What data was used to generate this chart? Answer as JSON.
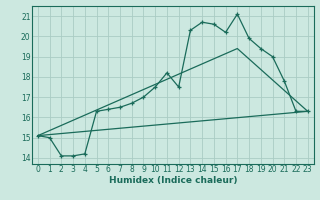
{
  "title": "",
  "xlabel": "Humidex (Indice chaleur)",
  "background_color": "#cce8e0",
  "grid_color": "#aaccc4",
  "line_color": "#1a6b5a",
  "xlim": [
    -0.5,
    23.5
  ],
  "ylim": [
    13.7,
    21.5
  ],
  "xticks": [
    0,
    1,
    2,
    3,
    4,
    5,
    6,
    7,
    8,
    9,
    10,
    11,
    12,
    13,
    14,
    15,
    16,
    17,
    18,
    19,
    20,
    21,
    22,
    23
  ],
  "yticks": [
    14,
    15,
    16,
    17,
    18,
    19,
    20,
    21
  ],
  "series1_x": [
    0,
    1,
    2,
    3,
    4,
    5,
    6,
    7,
    8,
    9,
    10,
    11,
    12,
    13,
    14,
    15,
    16,
    17,
    18,
    19,
    20,
    21,
    22,
    23
  ],
  "series1_y": [
    15.1,
    15.0,
    14.1,
    14.1,
    14.2,
    16.3,
    16.4,
    16.5,
    16.7,
    17.0,
    17.5,
    18.2,
    17.5,
    20.3,
    20.7,
    20.6,
    20.2,
    21.1,
    19.9,
    19.4,
    19.0,
    17.8,
    16.3,
    16.3
  ],
  "series2_x": [
    0,
    23
  ],
  "series2_y": [
    15.1,
    16.3
  ],
  "series3_x": [
    0,
    17,
    23
  ],
  "series3_y": [
    15.1,
    19.4,
    16.3
  ]
}
